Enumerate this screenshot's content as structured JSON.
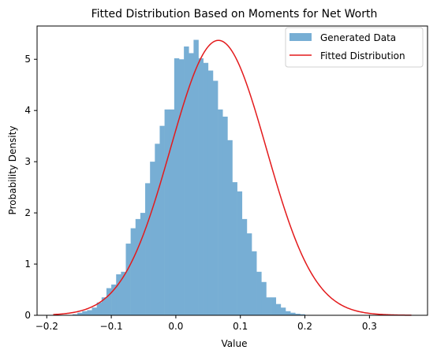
{
  "chart_data": {
    "type": "bar",
    "title": "Fitted Distribution Based on Moments for Net Worth",
    "xlabel": "Value",
    "ylabel": "Probability Density",
    "xlim": [
      -0.215,
      0.39
    ],
    "ylim": [
      0,
      5.65
    ],
    "xticks": [
      -0.2,
      -0.1,
      0.0,
      0.1,
      0.2,
      0.3
    ],
    "xtick_labels": [
      "−0.2",
      "−0.1",
      "0.0",
      "0.1",
      "0.2",
      "0.3"
    ],
    "yticks": [
      0,
      1,
      2,
      3,
      4,
      5
    ],
    "ytick_labels": [
      "0",
      "1",
      "2",
      "3",
      "4",
      "5"
    ],
    "grid": false,
    "legend_position": "top-right",
    "legend": [
      {
        "label": "Generated Data",
        "kind": "patch",
        "color": "#77aed4"
      },
      {
        "label": "Fitted Distribution",
        "kind": "line",
        "color": "#e31a1c"
      }
    ],
    "histogram": {
      "name": "Generated Data",
      "color": "#77aed4",
      "bins": [
        [
          -0.16,
          -0.1525,
          0.02
        ],
        [
          -0.1525,
          -0.145,
          0.05
        ],
        [
          -0.145,
          -0.1375,
          0.08
        ],
        [
          -0.1375,
          -0.13,
          0.1
        ],
        [
          -0.13,
          -0.1225,
          0.15
        ],
        [
          -0.1225,
          -0.115,
          0.25
        ],
        [
          -0.115,
          -0.1075,
          0.35
        ],
        [
          -0.1075,
          -0.1,
          0.53
        ],
        [
          -0.1,
          -0.0925,
          0.6
        ],
        [
          -0.0925,
          -0.085,
          0.8
        ],
        [
          -0.085,
          -0.0775,
          0.85
        ],
        [
          -0.0775,
          -0.07,
          1.4
        ],
        [
          -0.07,
          -0.0625,
          1.7
        ],
        [
          -0.0625,
          -0.055,
          1.88
        ],
        [
          -0.055,
          -0.0475,
          2.0
        ],
        [
          -0.0475,
          -0.04,
          2.58
        ],
        [
          -0.04,
          -0.0325,
          3.0
        ],
        [
          -0.0325,
          -0.025,
          3.35
        ],
        [
          -0.025,
          -0.0175,
          3.7
        ],
        [
          -0.0175,
          -0.01,
          4.02
        ],
        [
          -0.01,
          -0.0025,
          4.02
        ],
        [
          -0.0025,
          0.005,
          5.02
        ],
        [
          0.005,
          0.0125,
          5.0
        ],
        [
          0.0125,
          0.02,
          5.25
        ],
        [
          0.02,
          0.0275,
          5.12
        ],
        [
          0.0275,
          0.035,
          5.38
        ],
        [
          0.035,
          0.0425,
          5.02
        ],
        [
          0.0425,
          0.05,
          4.93
        ],
        [
          0.05,
          0.0575,
          4.78
        ],
        [
          0.0575,
          0.065,
          4.58
        ],
        [
          0.065,
          0.0725,
          4.02
        ],
        [
          0.0725,
          0.08,
          3.88
        ],
        [
          0.08,
          0.0875,
          3.42
        ],
        [
          0.0875,
          0.095,
          2.6
        ],
        [
          0.095,
          0.1025,
          2.42
        ],
        [
          0.1025,
          0.11,
          1.88
        ],
        [
          0.11,
          0.1175,
          1.6
        ],
        [
          0.1175,
          0.125,
          1.25
        ],
        [
          0.125,
          0.1325,
          0.85
        ],
        [
          0.1325,
          0.14,
          0.65
        ],
        [
          0.14,
          0.1475,
          0.35
        ],
        [
          0.1475,
          0.155,
          0.35
        ],
        [
          0.155,
          0.1625,
          0.22
        ],
        [
          0.1625,
          0.17,
          0.15
        ],
        [
          0.17,
          0.1775,
          0.08
        ],
        [
          0.1775,
          0.185,
          0.05
        ],
        [
          0.185,
          0.1925,
          0.03
        ],
        [
          0.1925,
          0.2,
          0.02
        ]
      ]
    },
    "fitted_curve": {
      "name": "Fitted Distribution",
      "color": "#e31a1c",
      "mean": 0.066,
      "peak_density": 5.37,
      "x_range": [
        -0.19,
        0.365
      ]
    }
  }
}
